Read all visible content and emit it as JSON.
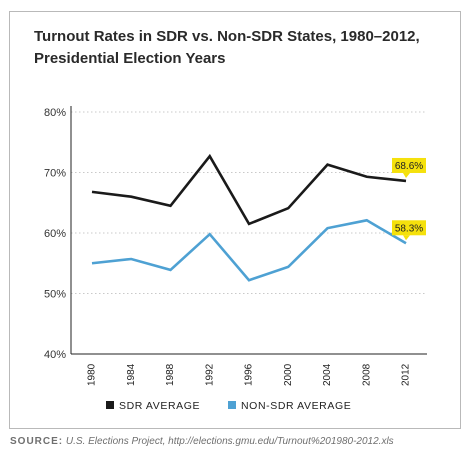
{
  "chart_data": {
    "type": "line",
    "title": "Turnout Rates in SDR vs. Non-SDR States, 1980–2012,",
    "subtitle": "Presidential Election Years",
    "xlabel": "",
    "ylabel": "",
    "categories": [
      "1980",
      "1984",
      "1988",
      "1992",
      "1996",
      "2000",
      "2004",
      "2008",
      "2012"
    ],
    "ylim": [
      40,
      80
    ],
    "yticks": [
      "40%",
      "50%",
      "60%",
      "70%",
      "80%"
    ],
    "grid": true,
    "legend_position": "bottom",
    "series": [
      {
        "name": "SDR AVERAGE",
        "color": "#1a1a1a",
        "values": [
          66.8,
          66.0,
          64.5,
          72.7,
          61.5,
          64.1,
          71.3,
          69.3,
          68.6
        ],
        "end_label": "68.6%"
      },
      {
        "name": "NON-SDR AVERAGE",
        "color": "#4ea1d3",
        "values": [
          55.0,
          55.7,
          53.9,
          59.8,
          52.2,
          54.4,
          60.8,
          62.1,
          58.3
        ],
        "end_label": "58.3%"
      }
    ],
    "callout_color": "#f5e10c"
  },
  "source": {
    "label": "SOURCE:",
    "text": "U.S. Elections Project, http://elections.gmu.edu/Turnout%201980-2012.xls"
  }
}
